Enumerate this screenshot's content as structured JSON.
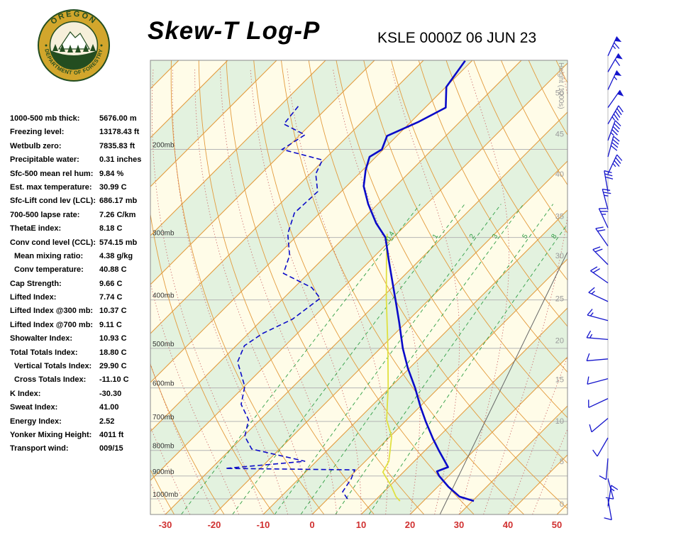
{
  "header": {
    "title": "Skew-T Log-P",
    "station_line": "KSLE 0000Z 06 JUN 23",
    "logo_top": "OREGON",
    "logo_bottom": "DEPARTMENT OF FORESTRY"
  },
  "indices": {
    "rows": [
      {
        "label": "1000-500 mb thick:",
        "value": "5676.00 m",
        "indent": false
      },
      {
        "label": "Freezing level:",
        "value": "13178.43 ft",
        "indent": false
      },
      {
        "label": "Wetbulb zero:",
        "value": "7835.83 ft",
        "indent": false
      },
      {
        "label": "Precipitable water:",
        "value": "0.31 inches",
        "indent": false
      },
      {
        "label": "Sfc-500 mean rel hum:",
        "value": "9.84 %",
        "indent": false
      },
      {
        "label": "Est. max temperature:",
        "value": "30.99 C",
        "indent": false
      },
      {
        "label": "Sfc-Lift cond lev (LCL):",
        "value": "686.17 mb",
        "indent": false
      },
      {
        "label": "700-500 lapse rate:",
        "value": "7.26 C/km",
        "indent": false
      },
      {
        "label": "ThetaE index:",
        "value": "8.18 C",
        "indent": false
      },
      {
        "label": "Conv cond level (CCL):",
        "value": "574.15 mb",
        "indent": false
      },
      {
        "label": "Mean mixing ratio:",
        "value": "4.38 g/kg",
        "indent": true
      },
      {
        "label": "Conv temperature:",
        "value": "40.88 C",
        "indent": true
      },
      {
        "label": "Cap Strength:",
        "value": "9.66 C",
        "indent": false
      },
      {
        "label": "Lifted Index:",
        "value": "7.74 C",
        "indent": false
      },
      {
        "label": "Lifted Index @300 mb:",
        "value": "10.37 C",
        "indent": false
      },
      {
        "label": "Lifted Index @700 mb:",
        "value": "9.11 C",
        "indent": false
      },
      {
        "label": "Showalter Index:",
        "value": "10.93 C",
        "indent": false
      },
      {
        "label": "Total Totals Index:",
        "value": "18.80 C",
        "indent": false
      },
      {
        "label": "Vertical Totals Index:",
        "value": "29.90 C",
        "indent": true
      },
      {
        "label": "Cross Totals Index:",
        "value": "-11.10 C",
        "indent": true
      },
      {
        "label": "K Index:",
        "value": "-30.30",
        "indent": false
      },
      {
        "label": "Sweat Index:",
        "value": "41.00",
        "indent": false
      },
      {
        "label": "Energy Index:",
        "value": "2.52",
        "indent": false
      },
      {
        "label": "Yonker Mixing Height:",
        "value": "4011 ft",
        "indent": false
      },
      {
        "label": "Transport wind:",
        "value": "009/15",
        "indent": false
      }
    ]
  },
  "chart_data": {
    "type": "skewt-log-p",
    "pressure_labels": [
      {
        "p": 200,
        "text": "200mb"
      },
      {
        "p": 300,
        "text": "300mb"
      },
      {
        "p": 400,
        "text": "400mb"
      },
      {
        "p": 500,
        "text": "500mb"
      },
      {
        "p": 600,
        "text": "600mb"
      },
      {
        "p": 700,
        "text": "700mb"
      },
      {
        "p": 800,
        "text": "800mb"
      },
      {
        "p": 900,
        "text": "900mb"
      },
      {
        "p": 1000,
        "text": "1000mb"
      }
    ],
    "temp_ticks": [
      -30,
      -20,
      -10,
      0,
      10,
      20,
      30,
      40,
      50
    ],
    "height_axis": {
      "title": "Height (1000s)",
      "ticks": [
        {
          "kft": 50,
          "p": 154
        },
        {
          "kft": 45,
          "p": 186
        },
        {
          "kft": 40,
          "p": 224
        },
        {
          "kft": 35,
          "p": 272
        },
        {
          "kft": 30,
          "p": 326
        },
        {
          "kft": 25,
          "p": 397
        },
        {
          "kft": 20,
          "p": 482
        },
        {
          "kft": 15,
          "p": 577
        },
        {
          "kft": 10,
          "p": 698
        },
        {
          "kft": 5,
          "p": 841
        },
        {
          "kft": 0,
          "p": 1023
        }
      ]
    },
    "isotherms": {
      "min": -130,
      "max": 50,
      "step": 10
    },
    "dry_adiabats": {
      "theta_k_min": 240,
      "theta_k_max": 440,
      "step_k": 10
    },
    "moist_adiabats": {
      "t_start_min": -30,
      "t_start_max": 45,
      "step": 5
    },
    "mixing_ratio": {
      "values": [
        0.4,
        1,
        2,
        3,
        5,
        8
      ],
      "label_p": 300
    },
    "temperature_profile": [
      [
        133,
        -61.4
      ],
      [
        150,
        -59.9
      ],
      [
        165,
        -55.8
      ],
      [
        176,
        -58.4
      ],
      [
        188,
        -62.0
      ],
      [
        200,
        -60.3
      ],
      [
        207,
        -61.3
      ],
      [
        220,
        -59.4
      ],
      [
        237,
        -56.5
      ],
      [
        257,
        -52.0
      ],
      [
        281,
        -46.4
      ],
      [
        300,
        -41.6
      ],
      [
        333,
        -36.3
      ],
      [
        371,
        -30.7
      ],
      [
        403,
        -26.4
      ],
      [
        444,
        -21.4
      ],
      [
        500,
        -15.4
      ],
      [
        548,
        -10.3
      ],
      [
        600,
        -4.8
      ],
      [
        655,
        0.2
      ],
      [
        700,
        4.2
      ],
      [
        759,
        9.3
      ],
      [
        800,
        12.8
      ],
      [
        864,
        18.1
      ],
      [
        881,
        16.7
      ],
      [
        900,
        18.1
      ],
      [
        946,
        22.2
      ],
      [
        990,
        26.5
      ],
      [
        1010,
        30.3
      ]
    ],
    "dewpoint_profile": [
      [
        164,
        -86.2
      ],
      [
        178,
        -85.5
      ],
      [
        187,
        -79.0
      ],
      [
        200,
        -80.7
      ],
      [
        210,
        -70.3
      ],
      [
        224,
        -68.8
      ],
      [
        243,
        -64.8
      ],
      [
        268,
        -65.2
      ],
      [
        295,
        -62.3
      ],
      [
        326,
        -57.5
      ],
      [
        354,
        -55.1
      ],
      [
        378,
        -46.4
      ],
      [
        397,
        -42.5
      ],
      [
        437,
        -43.9
      ],
      [
        467,
        -47.1
      ],
      [
        494,
        -48.3
      ],
      [
        532,
        -46.4
      ],
      [
        596,
        -39.9
      ],
      [
        647,
        -37.0
      ],
      [
        695,
        -32.3
      ],
      [
        750,
        -29.7
      ],
      [
        795,
        -25.7
      ],
      [
        841,
        -12.3
      ],
      [
        869,
        -27.1
      ],
      [
        875,
        -0.4
      ],
      [
        912,
        0.7
      ],
      [
        968,
        1.6
      ],
      [
        1010,
        4.8
      ]
    ],
    "wetbulb_profile": [
      [
        1010,
        15.2
      ],
      [
        990,
        13.5
      ],
      [
        946,
        10.6
      ],
      [
        884,
        5.8
      ],
      [
        841,
        4.8
      ],
      [
        795,
        2.6
      ],
      [
        750,
        0.3
      ],
      [
        695,
        -4.1
      ],
      [
        596,
        -10.6
      ],
      [
        494,
        -19.0
      ],
      [
        397,
        -29.0
      ],
      [
        326,
        -37.7
      ],
      [
        295,
        -42.0
      ]
    ],
    "reference_line": [
      [
        1074,
        26.1
      ],
      [
        320,
        -1.5
      ]
    ],
    "wind_barbs": [
      [
        130,
        25,
        65
      ],
      [
        140,
        30,
        60
      ],
      [
        152,
        25,
        55
      ],
      [
        165,
        35,
        50
      ],
      [
        178,
        30,
        45
      ],
      [
        192,
        20,
        45
      ],
      [
        207,
        15,
        40
      ],
      [
        224,
        25,
        35
      ],
      [
        243,
        350,
        30
      ],
      [
        264,
        345,
        25
      ],
      [
        287,
        335,
        25
      ],
      [
        312,
        325,
        20
      ],
      [
        340,
        315,
        20
      ],
      [
        370,
        305,
        20
      ],
      [
        403,
        295,
        15
      ],
      [
        440,
        285,
        15
      ],
      [
        480,
        275,
        15
      ],
      [
        525,
        265,
        10
      ],
      [
        575,
        255,
        10
      ],
      [
        630,
        245,
        10
      ],
      [
        690,
        230,
        10
      ],
      [
        755,
        210,
        10
      ],
      [
        830,
        185,
        10
      ],
      [
        910,
        165,
        10
      ],
      [
        1000,
        170,
        12
      ],
      [
        1035,
        9,
        15
      ]
    ],
    "colors": {
      "bg": "#fffce8",
      "band": "#e3f2df",
      "isotherm": "#e39b3d",
      "dry_adiabat": "#e39b3d",
      "moist_adiabat": "#cc6a6a",
      "mixing_ratio": "#2f9e44",
      "grid": "#b5b5b5",
      "temp_label": "#d03030",
      "pressure_label": "#333333",
      "height_label": "#999999",
      "profile": "#0a0ac8",
      "wetbulb": "#e0e040",
      "barb": "#1414cc",
      "border": "#8a8a8a"
    }
  }
}
